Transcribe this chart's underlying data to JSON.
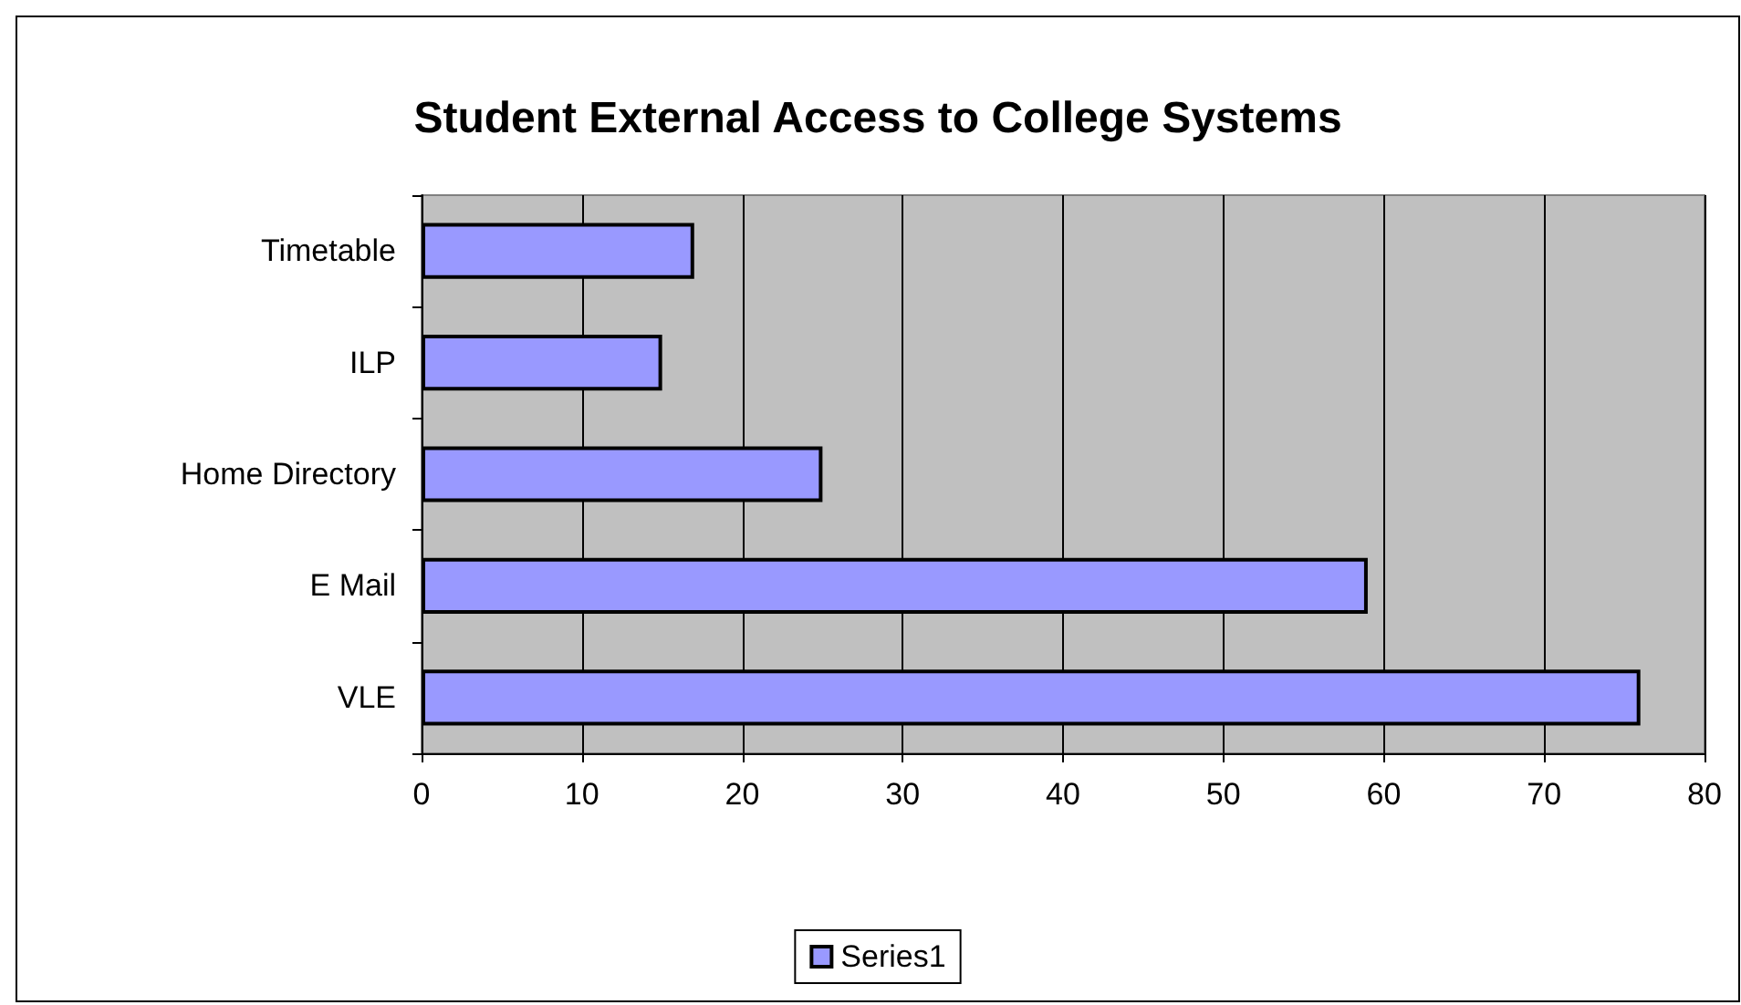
{
  "chart_data": {
    "type": "bar",
    "orientation": "horizontal",
    "title": "Student External Access to College Systems",
    "categories": [
      "Timetable",
      "ILP",
      "Home Directory",
      "E Mail",
      "VLE"
    ],
    "series": [
      {
        "name": "Series1",
        "color": "#9999ff",
        "values": [
          17,
          15,
          25,
          59,
          76
        ]
      }
    ],
    "xlim": [
      0,
      80
    ],
    "xticks": [
      0,
      10,
      20,
      30,
      40,
      50,
      60,
      70,
      80
    ],
    "grid": "x",
    "legend": "bottom"
  }
}
